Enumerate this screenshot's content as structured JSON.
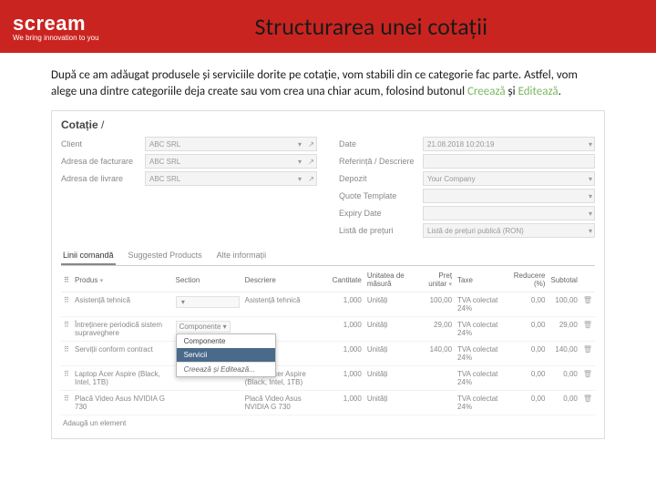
{
  "header": {
    "brand": "scream",
    "tagline": "We bring innovation to you",
    "title": "Structurarea unei cotații"
  },
  "body": {
    "p1a": "După ce am adăugat produsele și serviciile dorite pe cotație, vom stabili din ce categorie fac parte. Astfel, vom alege una dintre categoriile deja create sau vom crea una chiar acum, folosind butonul ",
    "hl1": "Creează",
    "p1b": " și ",
    "hl2": "Editează",
    "p1c": "."
  },
  "app": {
    "crumb_a": "Cotație",
    "crumb_b": " / ",
    "left_labels": {
      "client": "Client",
      "billing": "Adresa de facturare",
      "ship": "Adresa de livrare"
    },
    "left_values": {
      "client": "ABC SRL",
      "billing": "ABC SRL",
      "ship": "ABC SRL"
    },
    "right_labels": {
      "date": "Date",
      "ref": "Referință / Descriere",
      "dep": "Depozit",
      "tpl": "Quote Template",
      "exp": "Expiry Date",
      "pl": "Listă de prețuri"
    },
    "right_values": {
      "date": "21.08.2018  10:20:19",
      "dep": "Your Company",
      "pl": "Listă de prețuri publică (RON)"
    },
    "tabs": {
      "t1": "Linii comandă",
      "t2": "Suggested Products",
      "t3": "Alte informații"
    },
    "cols": {
      "prod": "Produs",
      "section": "Section",
      "desc": "Descriere",
      "qty": "Cantitate",
      "uom": "Unitatea de măsură",
      "unit": "Preț unitar",
      "tax": "Taxe",
      "disc": "Reducere (%)",
      "sub": "Subtotal"
    },
    "rows": [
      {
        "prod": "Asistență tehnică",
        "desc": "Asistență tehnică",
        "qty": "1,000",
        "uom": "Unități",
        "unit": "100,00",
        "tax": "TVA colectat 24%",
        "disc": "0,00",
        "sub": "100,00"
      },
      {
        "prod": "Întreținere periodică sistem supraveghere",
        "section_val": "Componente",
        "desc": "",
        "qty": "1,000",
        "uom": "Unități",
        "unit": "29,00",
        "tax": "TVA colectat 24%",
        "disc": "0,00",
        "sub": "29,00"
      },
      {
        "prod": "Serviții conform contract",
        "desc": "",
        "qty": "1,000",
        "uom": "Unități",
        "unit": "140,00",
        "tax": "TVA colectat 24%",
        "disc": "0,00",
        "sub": "140,00"
      },
      {
        "prod": "Laptop Acer Aspire (Black, Intel, 1TB)",
        "desc": "Laptop Acer Aspire (Black, Intel, 1TB)",
        "qty": "1,000",
        "uom": "Unități",
        "unit": "",
        "tax": "TVA colectat 24%",
        "disc": "0,00",
        "sub": "0,00"
      },
      {
        "prod": "Placă Video Asus NVIDIA G 730",
        "desc": "Placă Video Asus NVIDIA G 730",
        "qty": "1,000",
        "uom": "Unități",
        "unit": "",
        "tax": "TVA colectat 24%",
        "disc": "0,00",
        "sub": "0,00"
      }
    ],
    "dd": {
      "opt1": "Componente",
      "opt2": "Servicii",
      "create": "Creează și Editează..."
    },
    "add": "Adaugă un element"
  }
}
